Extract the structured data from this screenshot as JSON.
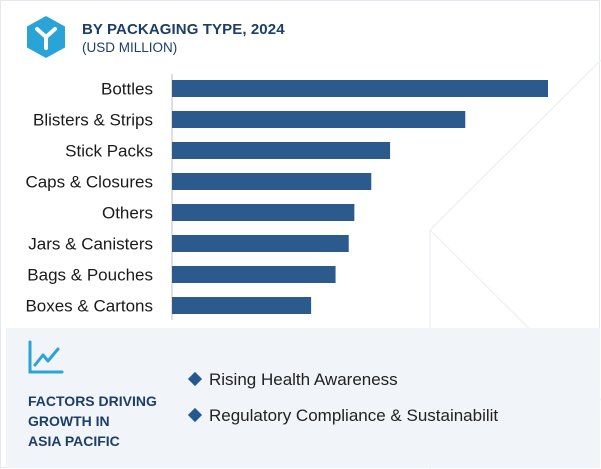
{
  "header": {
    "title": "BY PACKAGING TYPE, 2024",
    "subtitle": "(USD MILLION)"
  },
  "colors": {
    "bar": "#2c5a8d",
    "accent": "#1d3f66",
    "icon": "#2aa3d6"
  },
  "chart_data": {
    "type": "bar",
    "orientation": "horizontal",
    "title": "BY PACKAGING TYPE, 2024",
    "subtitle": "(USD MILLION)",
    "categories": [
      "Bottles",
      "Blisters & Strips",
      "Stick Packs",
      "Caps & Closures",
      "Others",
      "Jars & Canisters",
      "Bags & Pouches",
      "Boxes & Cartons"
    ],
    "values": [
      100,
      78,
      58,
      53,
      48.5,
      47,
      43.5,
      37
    ],
    "xlim": [
      0,
      100
    ],
    "grid": false,
    "legend": "none"
  },
  "factors": {
    "icon": "trend-chart-icon",
    "title_lines": [
      "FACTORS DRIVING",
      "GROWTH IN",
      "ASIA PACIFIC"
    ],
    "items": [
      "Rising Health Awareness",
      "Regulatory Compliance & Sustainabilit"
    ]
  }
}
